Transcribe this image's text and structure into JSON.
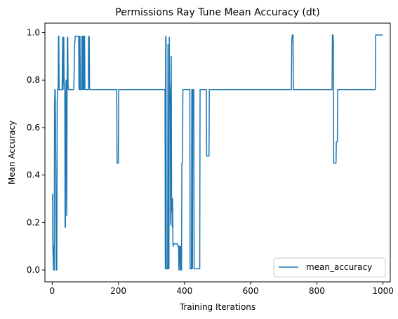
{
  "chart_data": {
    "type": "line",
    "title": "Permissions Ray Tune Mean Accuracy (dt)",
    "xlabel": "Training Iterations",
    "ylabel": "Mean Accuracy",
    "xlim": [
      -22,
      1022
    ],
    "ylim": [
      -0.05,
      1.04
    ],
    "xticks": [
      0,
      200,
      400,
      600,
      800,
      1000
    ],
    "xtick_labels": [
      "0",
      "200",
      "400",
      "600",
      "800",
      "1000"
    ],
    "yticks": [
      0.0,
      0.2,
      0.4,
      0.6,
      0.8,
      1.0
    ],
    "ytick_labels": [
      "0.0",
      "0.2",
      "0.4",
      "0.6",
      "0.8",
      "1.0"
    ],
    "grid": false,
    "legend_position": "bottom-right",
    "series": [
      {
        "name": "mean_accuracy",
        "color": "#1f77b4",
        "points": [
          [
            0,
            0.32
          ],
          [
            1,
            0.32
          ],
          [
            2,
            0.1
          ],
          [
            3,
            0.05
          ],
          [
            4,
            0.0
          ],
          [
            5,
            0.1
          ],
          [
            6,
            0.0
          ],
          [
            7,
            0.7
          ],
          [
            8,
            0.76
          ],
          [
            9,
            0.76
          ],
          [
            10,
            0.6
          ],
          [
            11,
            0.4
          ],
          [
            12,
            0.0
          ],
          [
            13,
            0.0
          ],
          [
            14,
            0.0
          ],
          [
            15,
            0.7
          ],
          [
            16,
            0.76
          ],
          [
            17,
            0.76
          ],
          [
            18,
            0.76
          ],
          [
            19,
            0.985
          ],
          [
            20,
            0.985
          ],
          [
            21,
            0.76
          ],
          [
            22,
            0.76
          ],
          [
            23,
            0.76
          ],
          [
            24,
            0.76
          ],
          [
            25,
            0.76
          ],
          [
            26,
            0.76
          ],
          [
            27,
            0.76
          ],
          [
            28,
            0.76
          ],
          [
            29,
            0.76
          ],
          [
            30,
            0.76
          ],
          [
            31,
            0.9
          ],
          [
            32,
            0.98
          ],
          [
            33,
            0.76
          ],
          [
            34,
            0.98
          ],
          [
            35,
            0.98
          ],
          [
            36,
            0.8
          ],
          [
            37,
            0.78
          ],
          [
            38,
            0.76
          ],
          [
            39,
            0.18
          ],
          [
            40,
            0.18
          ],
          [
            41,
            0.7
          ],
          [
            42,
            0.8
          ],
          [
            43,
            0.6
          ],
          [
            44,
            0.23
          ],
          [
            45,
            0.76
          ],
          [
            46,
            0.98
          ],
          [
            47,
            0.98
          ],
          [
            48,
            0.78
          ],
          [
            49,
            0.76
          ],
          [
            50,
            0.76
          ],
          [
            51,
            0.76
          ],
          [
            55,
            0.76
          ],
          [
            56,
            0.76
          ],
          [
            60,
            0.76
          ],
          [
            65,
            0.76
          ],
          [
            66,
            0.8
          ],
          [
            67,
            0.9
          ],
          [
            68,
            0.95
          ],
          [
            69,
            0.97
          ],
          [
            70,
            0.985
          ],
          [
            75,
            0.985
          ],
          [
            80,
            0.985
          ],
          [
            81,
            0.76
          ],
          [
            82,
            0.76
          ],
          [
            83,
            0.985
          ],
          [
            84,
            0.985
          ],
          [
            85,
            0.76
          ],
          [
            86,
            0.76
          ],
          [
            87,
            0.76
          ],
          [
            88,
            0.76
          ],
          [
            89,
            0.76
          ],
          [
            90,
            0.985
          ],
          [
            91,
            0.76
          ],
          [
            92,
            0.76
          ],
          [
            93,
            0.985
          ],
          [
            94,
            0.985
          ],
          [
            95,
            0.76
          ],
          [
            96,
            0.76
          ],
          [
            97,
            0.985
          ],
          [
            98,
            0.985
          ],
          [
            99,
            0.76
          ],
          [
            100,
            0.76
          ],
          [
            101,
            0.76
          ],
          [
            102,
            0.76
          ],
          [
            103,
            0.76
          ],
          [
            104,
            0.76
          ],
          [
            105,
            0.76
          ],
          [
            106,
            0.76
          ],
          [
            107,
            0.76
          ],
          [
            108,
            0.76
          ],
          [
            109,
            0.76
          ],
          [
            110,
            0.98
          ],
          [
            111,
            0.985
          ],
          [
            112,
            0.98
          ],
          [
            113,
            0.76
          ],
          [
            114,
            0.76
          ],
          [
            115,
            0.76
          ],
          [
            120,
            0.76
          ],
          [
            130,
            0.76
          ],
          [
            150,
            0.76
          ],
          [
            175,
            0.76
          ],
          [
            195,
            0.76
          ],
          [
            196,
            0.45
          ],
          [
            197,
            0.45
          ],
          [
            198,
            0.45
          ],
          [
            199,
            0.45
          ],
          [
            200,
            0.45
          ],
          [
            201,
            0.76
          ],
          [
            202,
            0.76
          ],
          [
            220,
            0.76
          ],
          [
            260,
            0.76
          ],
          [
            300,
            0.76
          ],
          [
            340,
            0.76
          ],
          [
            341,
            0.76
          ],
          [
            342,
            0.005
          ],
          [
            343,
            0.98
          ],
          [
            344,
            0.985
          ],
          [
            345,
            0.005
          ],
          [
            346,
            0.005
          ],
          [
            347,
            0.005
          ],
          [
            348,
            0.005
          ],
          [
            349,
            0.005
          ],
          [
            350,
            0.95
          ],
          [
            351,
            0.005
          ],
          [
            352,
            0.005
          ],
          [
            353,
            0.005
          ],
          [
            354,
            0.98
          ],
          [
            355,
            0.8
          ],
          [
            356,
            0.76
          ],
          [
            357,
            0.7
          ],
          [
            358,
            0.19
          ],
          [
            359,
            0.3
          ],
          [
            360,
            0.9
          ],
          [
            361,
            0.25
          ],
          [
            362,
            0.3
          ],
          [
            363,
            0.18
          ],
          [
            364,
            0.3
          ],
          [
            365,
            0.11
          ],
          [
            366,
            0.1
          ],
          [
            367,
            0.11
          ],
          [
            370,
            0.11
          ],
          [
            375,
            0.11
          ],
          [
            378,
            0.11
          ],
          [
            379,
            0.11
          ],
          [
            380,
            0.1
          ],
          [
            381,
            0.1
          ],
          [
            382,
            0.1
          ],
          [
            383,
            0.0
          ],
          [
            384,
            0.1
          ],
          [
            385,
            0.095
          ],
          [
            386,
            0.1
          ],
          [
            387,
            0.0
          ],
          [
            388,
            0.0
          ],
          [
            389,
            0.1
          ],
          [
            390,
            0.1
          ],
          [
            391,
            0.0
          ],
          [
            392,
            0.45
          ],
          [
            393,
            0.45
          ],
          [
            394,
            0.45
          ],
          [
            395,
            0.76
          ],
          [
            396,
            0.76
          ],
          [
            400,
            0.76
          ],
          [
            405,
            0.76
          ],
          [
            410,
            0.76
          ],
          [
            415,
            0.76
          ],
          [
            416,
            0.76
          ],
          [
            417,
            0.005
          ],
          [
            418,
            0.005
          ],
          [
            419,
            0.005
          ],
          [
            420,
            0.005
          ],
          [
            421,
            0.005
          ],
          [
            422,
            0.76
          ],
          [
            423,
            0.005
          ],
          [
            424,
            0.005
          ],
          [
            425,
            0.76
          ],
          [
            426,
            0.76
          ],
          [
            427,
            0.76
          ],
          [
            428,
            0.76
          ],
          [
            429,
            0.005
          ],
          [
            430,
            0.005
          ],
          [
            431,
            0.005
          ],
          [
            432,
            0.005
          ],
          [
            433,
            0.005
          ],
          [
            434,
            0.005
          ],
          [
            440,
            0.005
          ],
          [
            445,
            0.005
          ],
          [
            446,
            0.005
          ],
          [
            447,
            0.76
          ],
          [
            450,
            0.76
          ],
          [
            460,
            0.76
          ],
          [
            465,
            0.76
          ],
          [
            466,
            0.76
          ],
          [
            467,
            0.48
          ],
          [
            468,
            0.48
          ],
          [
            470,
            0.48
          ],
          [
            473,
            0.48
          ],
          [
            474,
            0.48
          ],
          [
            475,
            0.76
          ],
          [
            476,
            0.76
          ],
          [
            500,
            0.76
          ],
          [
            550,
            0.76
          ],
          [
            600,
            0.76
          ],
          [
            650,
            0.76
          ],
          [
            700,
            0.76
          ],
          [
            723,
            0.76
          ],
          [
            724,
            0.95
          ],
          [
            725,
            0.98
          ],
          [
            726,
            0.99
          ],
          [
            727,
            0.99
          ],
          [
            728,
            0.99
          ],
          [
            729,
            0.76
          ],
          [
            730,
            0.76
          ],
          [
            760,
            0.76
          ],
          [
            800,
            0.76
          ],
          [
            840,
            0.76
          ],
          [
            845,
            0.76
          ],
          [
            846,
            0.76
          ],
          [
            847,
            0.99
          ],
          [
            848,
            0.99
          ],
          [
            849,
            0.99
          ],
          [
            850,
            0.95
          ],
          [
            851,
            0.45
          ],
          [
            852,
            0.45
          ],
          [
            853,
            0.45
          ],
          [
            855,
            0.45
          ],
          [
            856,
            0.45
          ],
          [
            857,
            0.45
          ],
          [
            858,
            0.45
          ],
          [
            859,
            0.54
          ],
          [
            860,
            0.54
          ],
          [
            861,
            0.54
          ],
          [
            862,
            0.54
          ],
          [
            863,
            0.76
          ],
          [
            864,
            0.76
          ],
          [
            900,
            0.76
          ],
          [
            950,
            0.76
          ],
          [
            975,
            0.76
          ],
          [
            976,
            0.76
          ],
          [
            977,
            0.76
          ],
          [
            978,
            0.99
          ],
          [
            980,
            0.99
          ],
          [
            990,
            0.99
          ],
          [
            999,
            0.99
          ]
        ]
      }
    ]
  }
}
